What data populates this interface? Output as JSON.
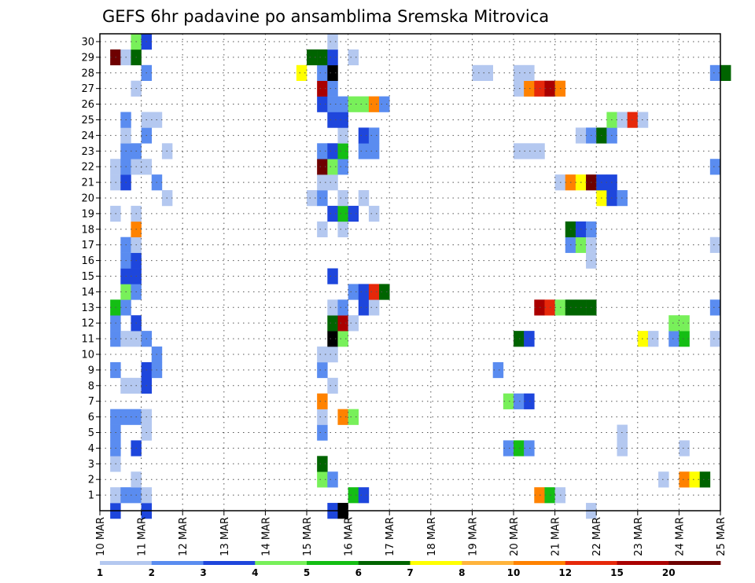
{
  "chart_data": {
    "type": "heatmap",
    "title": "GEFS 6hr padavine po ansamblima Sremska Mitrovica",
    "x_tick_labels": [
      "10 MAR",
      "11 MAR",
      "12 MAR",
      "13 MAR",
      "14 MAR",
      "15 MAR",
      "16 MAR",
      "17 MAR",
      "18 MAR",
      "19 MAR",
      "20 MAR",
      "21 MAR",
      "22 MAR",
      "23 MAR",
      "24 MAR",
      "25 MAR"
    ],
    "y_tick_labels": [
      "1",
      "2",
      "3",
      "4",
      "5",
      "6",
      "7",
      "8",
      "9",
      "10",
      "11",
      "12",
      "13",
      "14",
      "15",
      "16",
      "17",
      "18",
      "19",
      "20",
      "21",
      "22",
      "23",
      "24",
      "25",
      "26",
      "27",
      "28",
      "29",
      "30"
    ],
    "x_range_days": [
      10,
      25
    ],
    "y_range": [
      0,
      30
    ],
    "grid": true,
    "colorbar": {
      "labels": [
        "1",
        "2",
        "3",
        "4",
        "5",
        "6",
        "7",
        "8",
        "10",
        "12",
        "15",
        "20"
      ],
      "bounds": [
        1,
        2,
        3,
        4,
        5,
        6,
        7,
        8,
        10,
        12,
        15,
        20
      ],
      "colors": [
        "#b4c8f0",
        "#5a8cf0",
        "#1e46dc",
        "#78f05a",
        "#14be14",
        "#006400",
        "#ffff00",
        "#ffb43c",
        "#ff8200",
        "#e6280a",
        "#aa0000",
        "#6e0000"
      ]
    },
    "cell_width_hours": 6,
    "cells": [
      [
        10.25,
        0,
        3
      ],
      [
        11.0,
        0,
        3
      ],
      [
        15.5,
        0,
        3
      ],
      [
        15.75,
        0,
        13
      ],
      [
        21.75,
        0,
        1
      ],
      [
        10.25,
        1,
        1
      ],
      [
        10.5,
        1,
        2
      ],
      [
        10.75,
        1,
        2
      ],
      [
        11.0,
        1,
        1
      ],
      [
        16.0,
        1,
        5
      ],
      [
        16.25,
        1,
        3
      ],
      [
        20.5,
        1,
        9
      ],
      [
        20.75,
        1,
        5
      ],
      [
        21.0,
        1,
        1
      ],
      [
        10.75,
        2,
        1
      ],
      [
        15.25,
        2,
        4
      ],
      [
        15.5,
        2,
        2
      ],
      [
        23.5,
        2,
        1
      ],
      [
        24.0,
        2,
        9
      ],
      [
        24.25,
        2,
        7
      ],
      [
        24.5,
        2,
        6
      ],
      [
        10.25,
        3,
        1
      ],
      [
        15.25,
        3,
        6
      ],
      [
        10.25,
        4,
        2
      ],
      [
        10.75,
        4,
        3
      ],
      [
        19.75,
        4,
        2
      ],
      [
        20.0,
        4,
        5
      ],
      [
        20.25,
        4,
        2
      ],
      [
        22.5,
        4,
        1
      ],
      [
        24.0,
        4,
        1
      ],
      [
        10.25,
        5,
        2
      ],
      [
        11.0,
        5,
        1
      ],
      [
        15.25,
        5,
        2
      ],
      [
        22.5,
        5,
        1
      ],
      [
        10.25,
        6,
        2
      ],
      [
        10.5,
        6,
        2
      ],
      [
        10.75,
        6,
        2
      ],
      [
        11.0,
        6,
        1
      ],
      [
        15.25,
        6,
        1
      ],
      [
        15.75,
        6,
        9
      ],
      [
        16.0,
        6,
        4
      ],
      [
        15.25,
        7,
        9
      ],
      [
        19.75,
        7,
        4
      ],
      [
        20.0,
        7,
        2
      ],
      [
        20.25,
        7,
        3
      ],
      [
        10.5,
        8,
        1
      ],
      [
        10.75,
        8,
        1
      ],
      [
        11.0,
        8,
        3
      ],
      [
        15.5,
        8,
        1
      ],
      [
        10.25,
        9,
        2
      ],
      [
        11.0,
        9,
        3
      ],
      [
        11.25,
        9,
        2
      ],
      [
        15.25,
        9,
        2
      ],
      [
        19.5,
        9,
        2
      ],
      [
        11.25,
        10,
        2
      ],
      [
        15.25,
        10,
        1
      ],
      [
        15.5,
        10,
        1
      ],
      [
        10.25,
        11,
        2
      ],
      [
        10.5,
        11,
        1
      ],
      [
        10.75,
        11,
        1
      ],
      [
        11.0,
        11,
        2
      ],
      [
        15.5,
        11,
        13
      ],
      [
        15.75,
        11,
        4
      ],
      [
        20.0,
        11,
        6
      ],
      [
        20.25,
        11,
        3
      ],
      [
        23.0,
        11,
        7
      ],
      [
        23.25,
        11,
        1
      ],
      [
        23.75,
        11,
        2
      ],
      [
        24.0,
        11,
        5
      ],
      [
        24.75,
        11,
        1
      ],
      [
        10.25,
        12,
        2
      ],
      [
        10.75,
        12,
        3
      ],
      [
        15.5,
        12,
        6
      ],
      [
        15.75,
        12,
        11
      ],
      [
        16.0,
        12,
        1
      ],
      [
        23.75,
        12,
        4
      ],
      [
        24.0,
        12,
        4
      ],
      [
        10.25,
        13,
        5
      ],
      [
        10.5,
        13,
        2
      ],
      [
        15.5,
        13,
        1
      ],
      [
        15.75,
        13,
        2
      ],
      [
        16.25,
        13,
        3
      ],
      [
        16.5,
        13,
        1
      ],
      [
        20.5,
        13,
        11
      ],
      [
        20.75,
        13,
        10
      ],
      [
        21.0,
        13,
        4
      ],
      [
        21.25,
        13,
        6
      ],
      [
        21.5,
        13,
        6
      ],
      [
        21.75,
        13,
        6
      ],
      [
        24.75,
        13,
        2
      ],
      [
        10.5,
        14,
        4
      ],
      [
        10.75,
        14,
        2
      ],
      [
        16.0,
        14,
        2
      ],
      [
        16.25,
        14,
        3
      ],
      [
        16.5,
        14,
        10
      ],
      [
        16.75,
        14,
        6
      ],
      [
        10.5,
        15,
        3
      ],
      [
        10.75,
        15,
        3
      ],
      [
        15.5,
        15,
        3
      ],
      [
        10.5,
        16,
        2
      ],
      [
        10.75,
        16,
        3
      ],
      [
        21.75,
        16,
        1
      ],
      [
        10.5,
        17,
        2
      ],
      [
        10.75,
        17,
        1
      ],
      [
        21.25,
        17,
        2
      ],
      [
        21.5,
        17,
        4
      ],
      [
        21.75,
        17,
        1
      ],
      [
        24.75,
        17,
        1
      ],
      [
        10.75,
        18,
        9
      ],
      [
        15.25,
        18,
        1
      ],
      [
        15.75,
        18,
        1
      ],
      [
        21.25,
        18,
        6
      ],
      [
        21.5,
        18,
        3
      ],
      [
        21.75,
        18,
        2
      ],
      [
        10.25,
        19,
        1
      ],
      [
        10.75,
        19,
        1
      ],
      [
        15.5,
        19,
        3
      ],
      [
        15.75,
        19,
        5
      ],
      [
        16.0,
        19,
        3
      ],
      [
        16.5,
        19,
        1
      ],
      [
        11.5,
        20,
        1
      ],
      [
        15.0,
        20,
        1
      ],
      [
        15.25,
        20,
        2
      ],
      [
        15.75,
        20,
        1
      ],
      [
        16.25,
        20,
        1
      ],
      [
        22.0,
        20,
        7
      ],
      [
        22.25,
        20,
        3
      ],
      [
        22.5,
        20,
        2
      ],
      [
        10.25,
        21,
        1
      ],
      [
        10.5,
        21,
        3
      ],
      [
        11.25,
        21,
        2
      ],
      [
        15.25,
        21,
        1
      ],
      [
        15.5,
        21,
        1
      ],
      [
        21.0,
        21,
        1
      ],
      [
        21.25,
        21,
        9
      ],
      [
        21.5,
        21,
        7
      ],
      [
        21.75,
        21,
        12
      ],
      [
        22.0,
        21,
        3
      ],
      [
        22.25,
        21,
        3
      ],
      [
        10.25,
        22,
        1
      ],
      [
        10.5,
        22,
        2
      ],
      [
        10.75,
        22,
        1
      ],
      [
        11.0,
        22,
        1
      ],
      [
        15.25,
        22,
        12
      ],
      [
        15.5,
        22,
        4
      ],
      [
        15.75,
        22,
        2
      ],
      [
        24.75,
        22,
        2
      ],
      [
        10.5,
        23,
        2
      ],
      [
        10.75,
        23,
        2
      ],
      [
        11.5,
        23,
        1
      ],
      [
        15.25,
        23,
        2
      ],
      [
        15.5,
        23,
        3
      ],
      [
        15.75,
        23,
        5
      ],
      [
        16.25,
        23,
        2
      ],
      [
        16.5,
        23,
        2
      ],
      [
        20.0,
        23,
        1
      ],
      [
        20.25,
        23,
        1
      ],
      [
        20.5,
        23,
        1
      ],
      [
        10.5,
        24,
        1
      ],
      [
        11.0,
        24,
        2
      ],
      [
        15.75,
        24,
        1
      ],
      [
        16.25,
        24,
        3
      ],
      [
        16.5,
        24,
        2
      ],
      [
        21.5,
        24,
        1
      ],
      [
        21.75,
        24,
        2
      ],
      [
        22.0,
        24,
        6
      ],
      [
        22.25,
        24,
        2
      ],
      [
        10.5,
        25,
        2
      ],
      [
        11.0,
        25,
        1
      ],
      [
        11.25,
        25,
        1
      ],
      [
        15.5,
        25,
        3
      ],
      [
        15.75,
        25,
        3
      ],
      [
        22.25,
        25,
        4
      ],
      [
        22.5,
        25,
        1
      ],
      [
        22.75,
        25,
        10
      ],
      [
        23.0,
        25,
        1
      ],
      [
        15.25,
        26,
        3
      ],
      [
        15.5,
        26,
        2
      ],
      [
        15.75,
        26,
        2
      ],
      [
        16.0,
        26,
        4
      ],
      [
        16.25,
        26,
        4
      ],
      [
        16.5,
        26,
        9
      ],
      [
        16.75,
        26,
        2
      ],
      [
        10.75,
        27,
        1
      ],
      [
        15.25,
        27,
        11
      ],
      [
        15.5,
        27,
        2
      ],
      [
        20.0,
        27,
        1
      ],
      [
        20.25,
        27,
        9
      ],
      [
        20.5,
        27,
        10
      ],
      [
        20.75,
        27,
        11
      ],
      [
        21.0,
        27,
        9
      ],
      [
        11.0,
        28,
        2
      ],
      [
        14.75,
        28,
        7
      ],
      [
        15.25,
        28,
        2
      ],
      [
        15.5,
        28,
        13
      ],
      [
        19.0,
        28,
        1
      ],
      [
        19.25,
        28,
        1
      ],
      [
        20.0,
        28,
        1
      ],
      [
        20.25,
        28,
        1
      ],
      [
        24.75,
        28,
        2
      ],
      [
        25.0,
        28,
        6
      ],
      [
        10.25,
        29,
        12
      ],
      [
        10.5,
        29,
        1
      ],
      [
        10.75,
        29,
        6
      ],
      [
        15.0,
        29,
        6
      ],
      [
        15.25,
        29,
        6
      ],
      [
        15.5,
        29,
        3
      ],
      [
        16.0,
        29,
        1
      ],
      [
        10.75,
        30,
        4
      ],
      [
        11.0,
        30,
        3
      ],
      [
        15.5,
        30,
        1
      ]
    ]
  }
}
